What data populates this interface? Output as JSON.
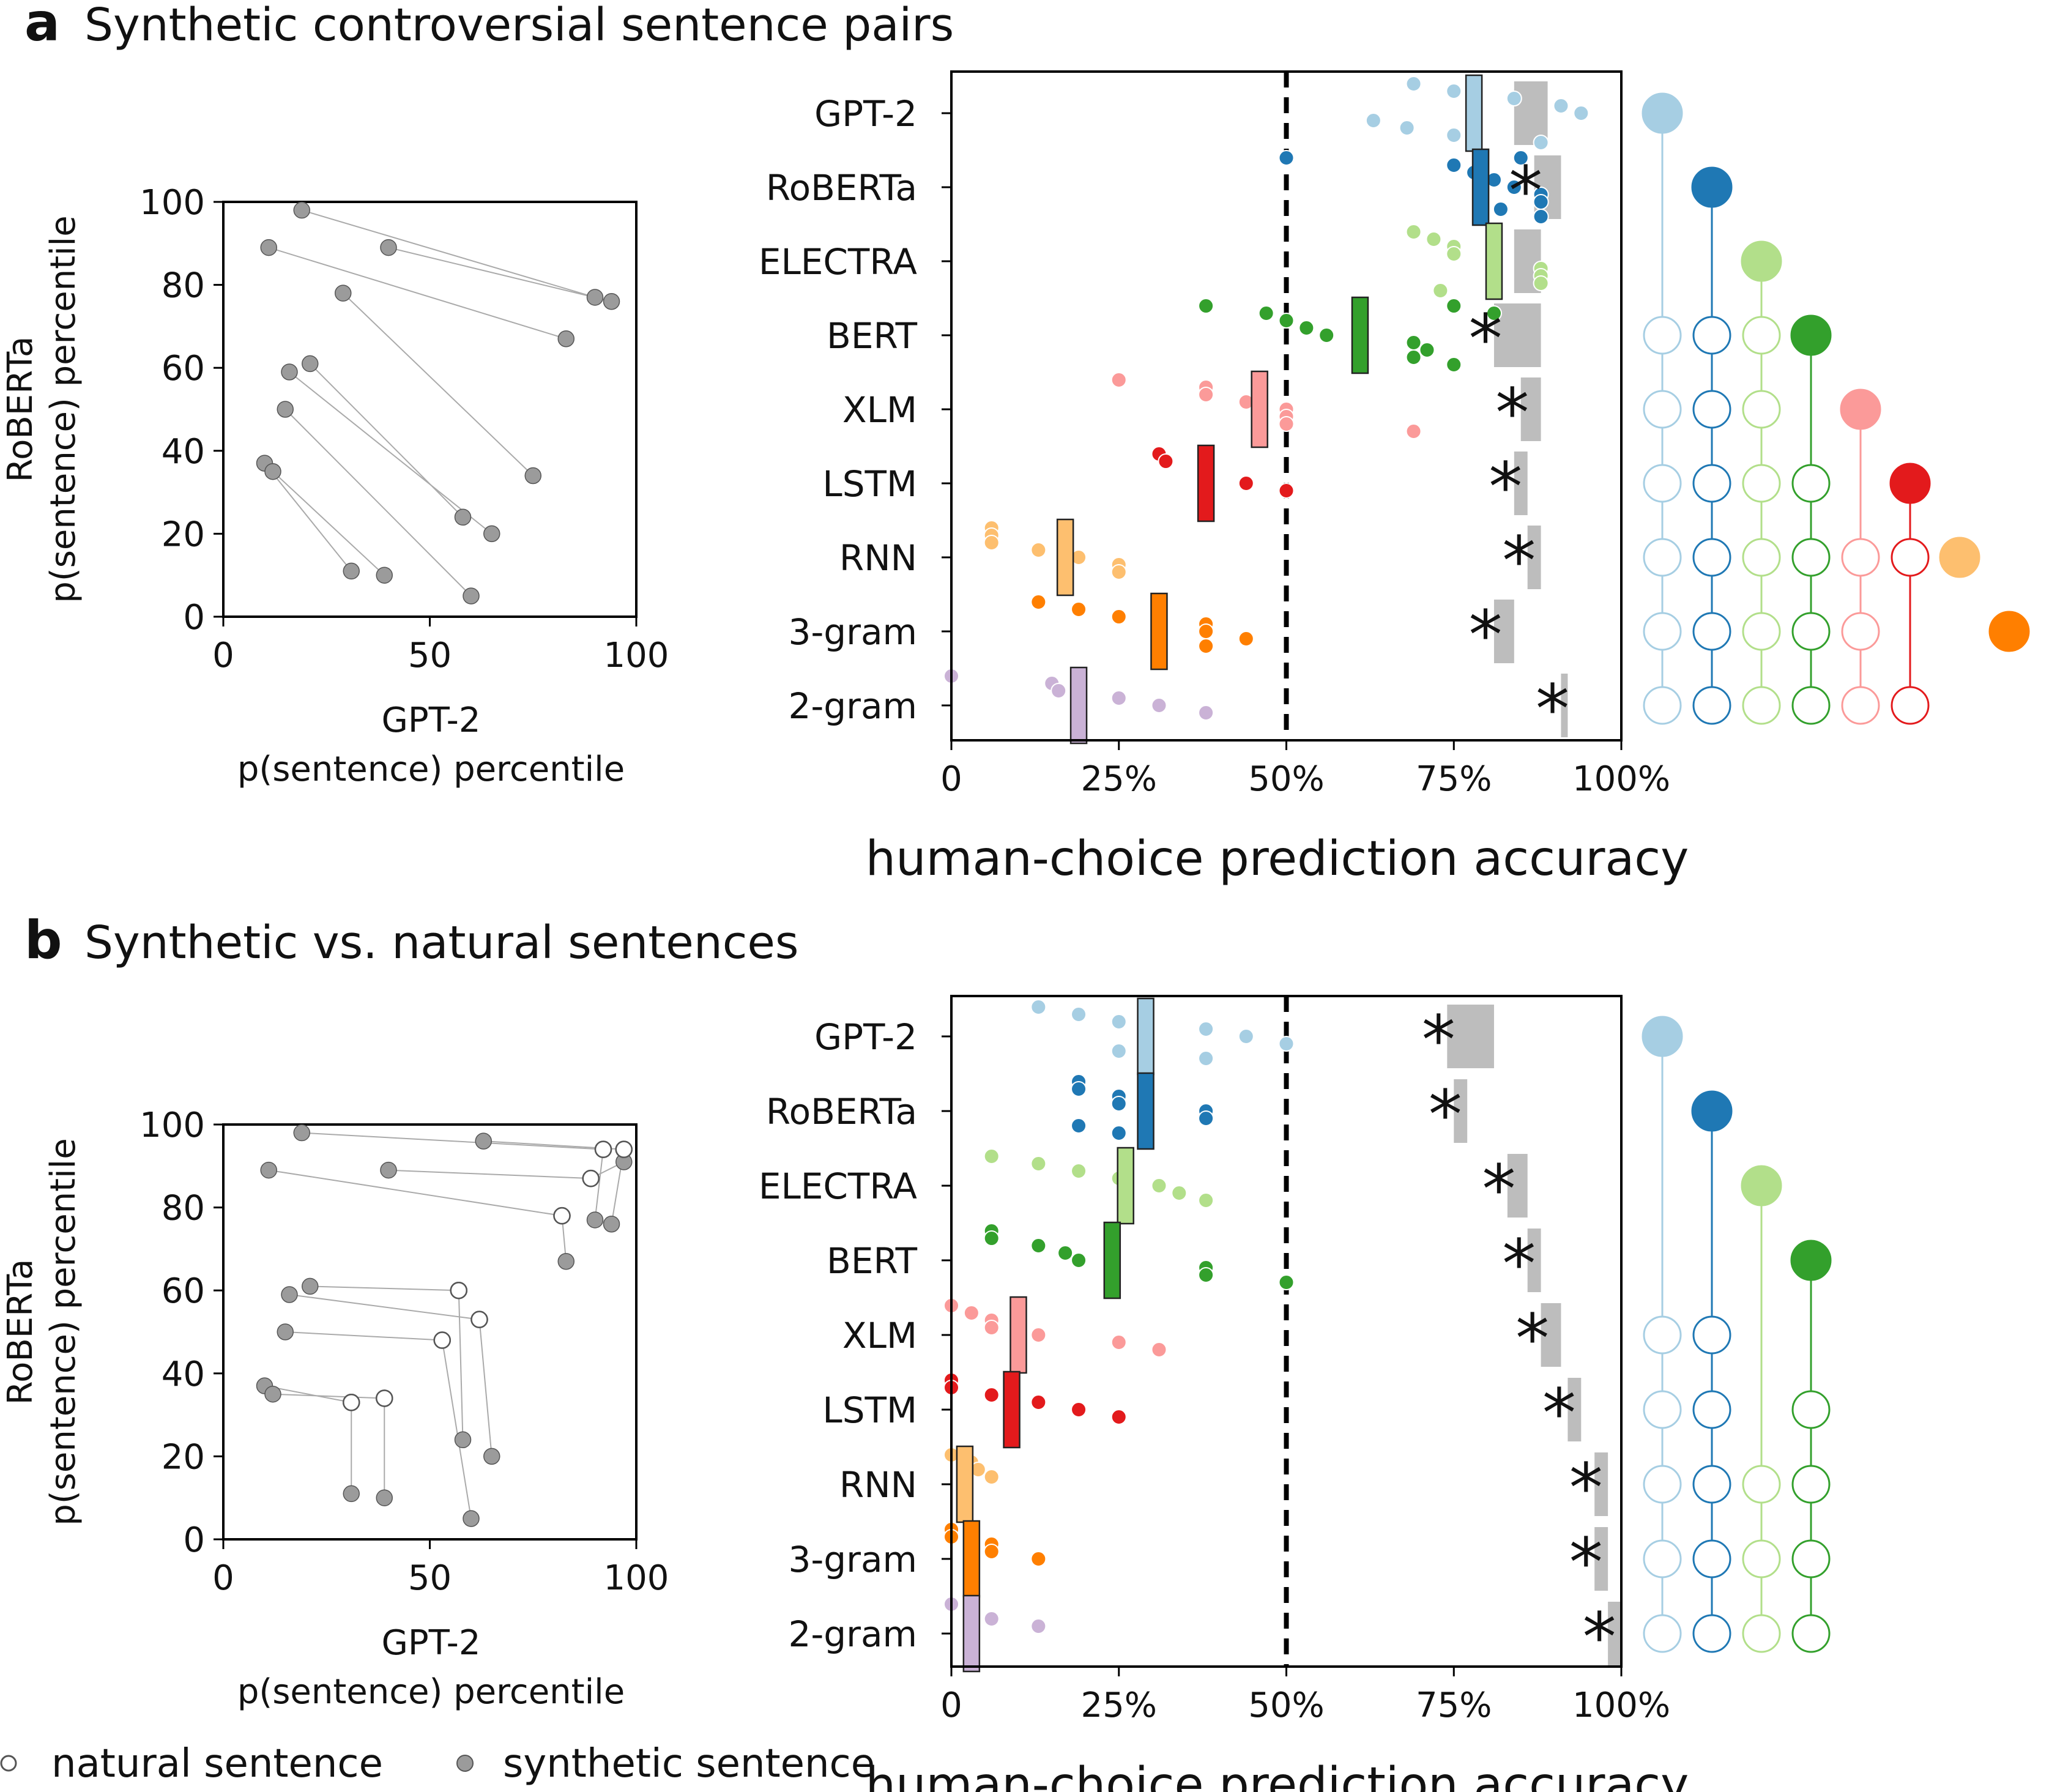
{
  "colors": {
    "GPT-2": "#a6cee3",
    "RoBERTa": "#1f78b4",
    "ELECTRA": "#b2df8a",
    "BERT": "#33a02c",
    "XLM": "#fb9a99",
    "LSTM": "#e31a1c",
    "RNN": "#fdbf6f",
    "3-gram": "#ff7f00",
    "2-gram": "#cab2d6",
    "noise_ceiling": "#bdbdbd",
    "pair_point": "#9b9b9b"
  },
  "legend": {
    "natural": "natural sentence",
    "synthetic": "synthetic sentence",
    "natural_marker": "open-circle-icon",
    "synthetic_marker": "filled-circle-icon"
  },
  "panels": [
    {
      "letter": "a",
      "title": "Synthetic controversial sentence pairs",
      "scatter": {
        "xlabel1": "GPT-2",
        "xlabel2": "p(sentence) percentile",
        "ylabel1": "RoBERTa",
        "ylabel2": "p(sentence) percentile",
        "xticks": [
          "0",
          "50",
          "100"
        ],
        "yticks": [
          "0",
          "20",
          "40",
          "60",
          "80",
          "100"
        ],
        "pairs": [
          {
            "a": [
              19,
              98,
              "synthetic"
            ],
            "b": [
              90,
              77,
              "synthetic"
            ]
          },
          {
            "a": [
              40,
              89,
              "synthetic"
            ],
            "b": [
              94,
              76,
              "synthetic"
            ]
          },
          {
            "a": [
              11,
              89,
              "synthetic"
            ],
            "b": [
              83,
              67,
              "synthetic"
            ]
          },
          {
            "a": [
              29,
              78,
              "synthetic"
            ],
            "b": [
              75,
              34,
              "synthetic"
            ]
          },
          {
            "a": [
              21,
              61,
              "synthetic"
            ],
            "b": [
              58,
              24,
              "synthetic"
            ]
          },
          {
            "a": [
              16,
              59,
              "synthetic"
            ],
            "b": [
              65,
              20,
              "synthetic"
            ]
          },
          {
            "a": [
              15,
              50,
              "synthetic"
            ],
            "b": [
              60,
              5,
              "synthetic"
            ]
          },
          {
            "a": [
              10,
              37,
              "synthetic"
            ],
            "b": [
              31,
              11,
              "synthetic"
            ]
          },
          {
            "a": [
              12,
              35,
              "synthetic"
            ],
            "b": [
              39,
              10,
              "synthetic"
            ]
          }
        ]
      },
      "accuracy_xlabel": "human-choice prediction accuracy",
      "accuracy_xticks": [
        "0",
        "25%",
        "50%",
        "75%",
        "100%"
      ],
      "pair_matrix": [
        [
          "GPT-2"
        ],
        [
          "RoBERTa"
        ],
        [
          "ELECTRA"
        ],
        [
          "GPT-2",
          "RoBERTa",
          "ELECTRA",
          "BERT"
        ],
        [
          "GPT-2",
          "RoBERTa",
          "ELECTRA",
          "XLM"
        ],
        [
          "GPT-2",
          "RoBERTa",
          "ELECTRA",
          "BERT",
          "LSTM"
        ],
        [
          "GPT-2",
          "RoBERTa",
          "ELECTRA",
          "BERT",
          "XLM",
          "LSTM",
          "RNN"
        ],
        [
          "GPT-2",
          "RoBERTa",
          "ELECTRA",
          "BERT",
          "XLM",
          "3-gram"
        ],
        [
          "GPT-2",
          "RoBERTa",
          "ELECTRA",
          "BERT",
          "XLM",
          "LSTM"
        ]
      ]
    },
    {
      "letter": "b",
      "title": "Synthetic vs. natural sentences",
      "scatter": {
        "xlabel1": "GPT-2",
        "xlabel2": "p(sentence) percentile",
        "ylabel1": "RoBERTa",
        "ylabel2": "p(sentence) percentile",
        "xticks": [
          "0",
          "50",
          "100"
        ],
        "yticks": [
          "0",
          "20",
          "40",
          "60",
          "80",
          "100"
        ],
        "pairs": [
          {
            "a": [
              19,
              98,
              "synthetic"
            ],
            "b": [
              92,
              94,
              "natural"
            ]
          },
          {
            "a": [
              63,
              96,
              "synthetic"
            ],
            "b": [
              97,
              94,
              "natural"
            ]
          },
          {
            "a": [
              97,
              91,
              "synthetic"
            ],
            "b": [
              89,
              87,
              "natural"
            ]
          },
          {
            "a": [
              11,
              89,
              "synthetic"
            ],
            "b": [
              82,
              78,
              "natural"
            ]
          },
          {
            "a": [
              40,
              89,
              "synthetic"
            ],
            "b": [
              89,
              87,
              "natural"
            ]
          },
          {
            "a": [
              90,
              77,
              "synthetic"
            ],
            "b": [
              92,
              94,
              "natural"
            ]
          },
          {
            "a": [
              94,
              76,
              "synthetic"
            ],
            "b": [
              97,
              94,
              "natural"
            ]
          },
          {
            "a": [
              83,
              67,
              "synthetic"
            ],
            "b": [
              82,
              78,
              "natural"
            ]
          },
          {
            "a": [
              21,
              61,
              "synthetic"
            ],
            "b": [
              57,
              60,
              "natural"
            ]
          },
          {
            "a": [
              16,
              59,
              "synthetic"
            ],
            "b": [
              62,
              53,
              "natural"
            ]
          },
          {
            "a": [
              15,
              50,
              "synthetic"
            ],
            "b": [
              53,
              48,
              "natural"
            ]
          },
          {
            "a": [
              58,
              24,
              "synthetic"
            ],
            "b": [
              57,
              60,
              "natural"
            ]
          },
          {
            "a": [
              65,
              20,
              "synthetic"
            ],
            "b": [
              62,
              53,
              "natural"
            ]
          },
          {
            "a": [
              60,
              5,
              "synthetic"
            ],
            "b": [
              53,
              48,
              "natural"
            ]
          },
          {
            "a": [
              10,
              37,
              "synthetic"
            ],
            "b": [
              31,
              33,
              "natural"
            ]
          },
          {
            "a": [
              12,
              35,
              "synthetic"
            ],
            "b": [
              39,
              34,
              "natural"
            ]
          },
          {
            "a": [
              31,
              11,
              "synthetic"
            ],
            "b": [
              31,
              33,
              "natural"
            ]
          },
          {
            "a": [
              39,
              10,
              "synthetic"
            ],
            "b": [
              39,
              34,
              "natural"
            ]
          }
        ]
      },
      "accuracy_xlabel": "human-choice prediction accuracy",
      "accuracy_xticks": [
        "0",
        "25%",
        "50%",
        "75%",
        "100%"
      ],
      "pair_matrix": [
        [
          "GPT-2"
        ],
        [
          "RoBERTa"
        ],
        [
          "ELECTRA"
        ],
        [
          "BERT"
        ],
        [
          "GPT-2",
          "RoBERTa"
        ],
        [
          "GPT-2",
          "RoBERTa",
          "BERT"
        ],
        [
          "GPT-2",
          "RoBERTa",
          "ELECTRA",
          "BERT"
        ],
        [
          "GPT-2",
          "RoBERTa",
          "ELECTRA",
          "BERT"
        ],
        [
          "GPT-2",
          "RoBERTa",
          "ELECTRA",
          "BERT"
        ]
      ]
    }
  ],
  "chart_data": [
    {
      "type": "scatter",
      "title": "Synthetic controversial sentence pairs",
      "categories": [
        "GPT-2",
        "RoBERTa",
        "ELECTRA",
        "BERT",
        "XLM",
        "LSTM",
        "RNN",
        "3-gram",
        "2-gram"
      ],
      "xlabel": "human-choice prediction accuracy",
      "xlim": [
        0,
        100
      ],
      "chance_level": 50,
      "series": [
        {
          "name": "GPT-2",
          "mean": 78,
          "noise_ceiling": [
            84,
            89
          ],
          "significant": false,
          "points": [
            69,
            75,
            84,
            91,
            94,
            63,
            68,
            75,
            88
          ]
        },
        {
          "name": "RoBERTa",
          "mean": 79,
          "noise_ceiling": [
            87,
            91
          ],
          "significant": true,
          "points": [
            50,
            75,
            78,
            81,
            84,
            88,
            88,
            82,
            88,
            85
          ]
        },
        {
          "name": "ELECTRA",
          "mean": 81,
          "noise_ceiling": [
            84,
            88
          ],
          "significant": false,
          "points": [
            69,
            72,
            75,
            75,
            81,
            88,
            88,
            88,
            73
          ]
        },
        {
          "name": "BERT",
          "mean": 61,
          "noise_ceiling": [
            81,
            88
          ],
          "significant": true,
          "points": [
            38,
            47,
            50,
            53,
            56,
            69,
            71,
            69,
            75,
            75,
            81
          ]
        },
        {
          "name": "XLM",
          "mean": 46,
          "noise_ceiling": [
            85,
            88
          ],
          "significant": true,
          "points": [
            25,
            38,
            38,
            44,
            50,
            50,
            50,
            69
          ]
        },
        {
          "name": "LSTM",
          "mean": 38,
          "noise_ceiling": [
            84,
            86
          ],
          "significant": true,
          "points": [
            31,
            32,
            38,
            38,
            44,
            50
          ]
        },
        {
          "name": "RNN",
          "mean": 17,
          "noise_ceiling": [
            86,
            88
          ],
          "significant": true,
          "points": [
            6,
            6,
            6,
            13,
            19,
            25,
            25
          ]
        },
        {
          "name": "3-gram",
          "mean": 31,
          "noise_ceiling": [
            81,
            84
          ],
          "significant": true,
          "points": [
            13,
            19,
            25,
            38,
            38,
            44,
            38
          ]
        },
        {
          "name": "2-gram",
          "mean": 19,
          "noise_ceiling": [
            91,
            92
          ],
          "significant": true,
          "points": [
            0,
            15,
            16,
            25,
            31,
            38
          ]
        }
      ]
    },
    {
      "type": "scatter",
      "title": "Synthetic vs. natural sentences",
      "categories": [
        "GPT-2",
        "RoBERTa",
        "ELECTRA",
        "BERT",
        "XLM",
        "LSTM",
        "RNN",
        "3-gram",
        "2-gram"
      ],
      "xlabel": "human-choice prediction accuracy",
      "xlim": [
        0,
        100
      ],
      "chance_level": 50,
      "series": [
        {
          "name": "GPT-2",
          "mean": 29,
          "noise_ceiling": [
            74,
            81
          ],
          "significant": true,
          "points": [
            13,
            19,
            25,
            38,
            44,
            50,
            25,
            38
          ]
        },
        {
          "name": "RoBERTa",
          "mean": 29,
          "noise_ceiling": [
            75,
            77
          ],
          "significant": true,
          "points": [
            19,
            19,
            25,
            25,
            38,
            38,
            19,
            25
          ]
        },
        {
          "name": "ELECTRA",
          "mean": 26,
          "noise_ceiling": [
            83,
            86
          ],
          "significant": true,
          "points": [
            6,
            13,
            19,
            25,
            31,
            34,
            38
          ]
        },
        {
          "name": "BERT",
          "mean": 24,
          "noise_ceiling": [
            86,
            88
          ],
          "significant": true,
          "points": [
            6,
            6,
            13,
            17,
            19,
            38,
            38,
            50
          ]
        },
        {
          "name": "XLM",
          "mean": 10,
          "noise_ceiling": [
            88,
            91
          ],
          "significant": true,
          "points": [
            0,
            3,
            6,
            6,
            13,
            25,
            31
          ]
        },
        {
          "name": "LSTM",
          "mean": 9,
          "noise_ceiling": [
            92,
            94
          ],
          "significant": true,
          "points": [
            0,
            0,
            6,
            13,
            19,
            25
          ]
        },
        {
          "name": "RNN",
          "mean": 2,
          "noise_ceiling": [
            96,
            98
          ],
          "significant": true,
          "points": [
            0,
            3,
            4,
            6
          ]
        },
        {
          "name": "3-gram",
          "mean": 3,
          "noise_ceiling": [
            96,
            98
          ],
          "significant": true,
          "points": [
            0,
            0,
            6,
            6,
            13
          ]
        },
        {
          "name": "2-gram",
          "mean": 3,
          "noise_ceiling": [
            98,
            100
          ],
          "significant": true,
          "points": [
            0,
            3,
            6,
            13
          ]
        }
      ]
    }
  ]
}
